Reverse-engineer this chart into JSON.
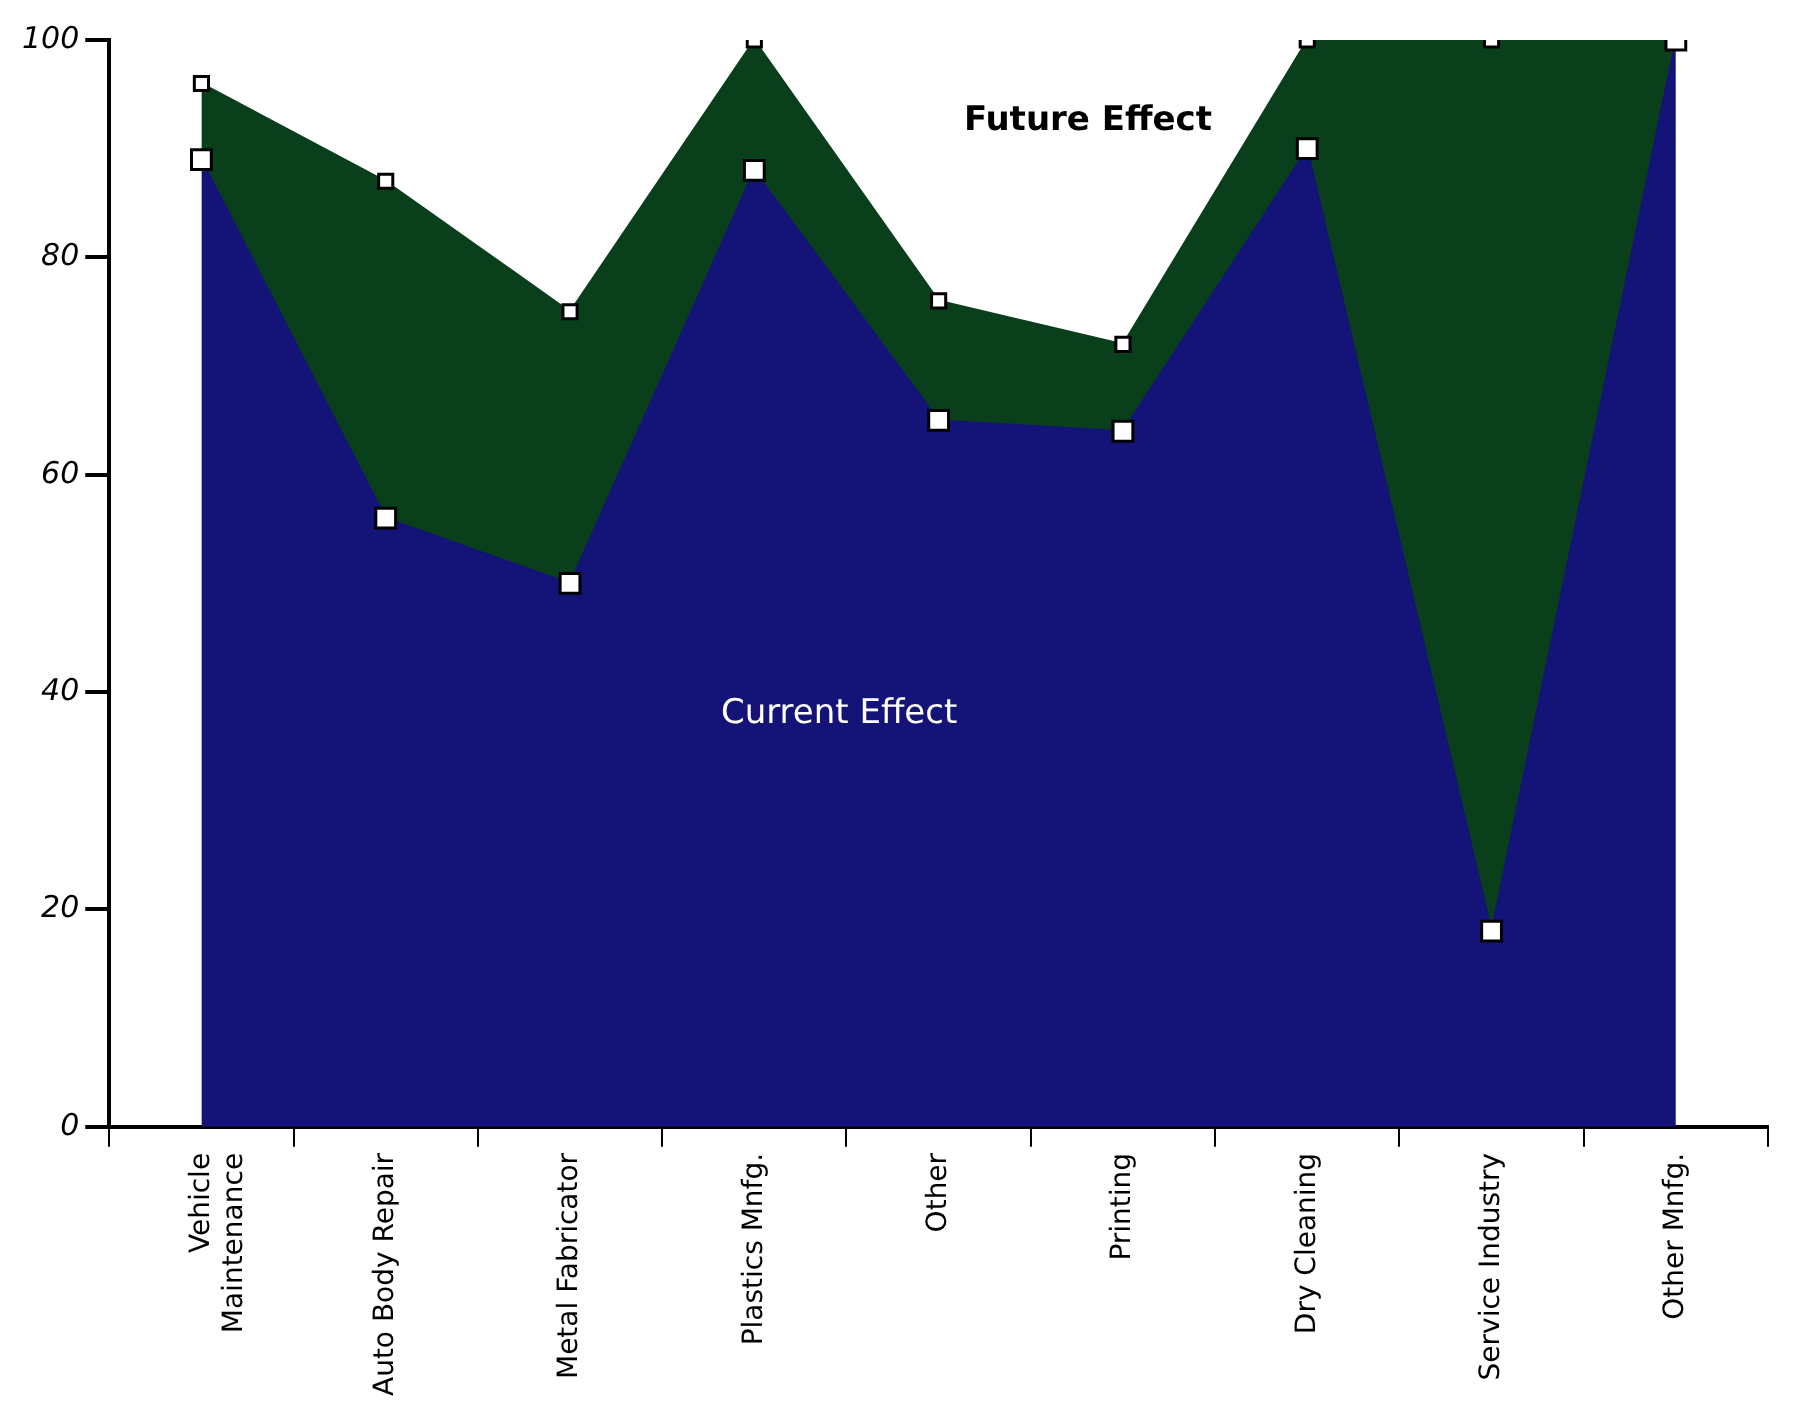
{
  "chart_data": {
    "type": "area",
    "stacked": true,
    "categories": [
      "Vehicle Maintenance",
      "Auto Body Repair",
      "Metal Fabricator",
      "Plastics Mnfg.",
      "Other",
      "Printing",
      "Dry Cleaning",
      "Service Industry",
      "Other Mnfg."
    ],
    "series": [
      {
        "name": "Current Effect",
        "color": "#141478",
        "values": [
          89,
          56,
          50,
          88,
          65,
          64,
          90,
          18,
          100
        ]
      },
      {
        "name": "Future Effect",
        "color": "#0a3f1c",
        "values": [
          7,
          31,
          25,
          12,
          11,
          8,
          10,
          82,
          0
        ]
      }
    ],
    "ylim": [
      0,
      100
    ],
    "yticks": [
      0,
      20,
      40,
      60,
      80,
      100
    ],
    "grid": false,
    "legend": false,
    "marker": "square"
  }
}
